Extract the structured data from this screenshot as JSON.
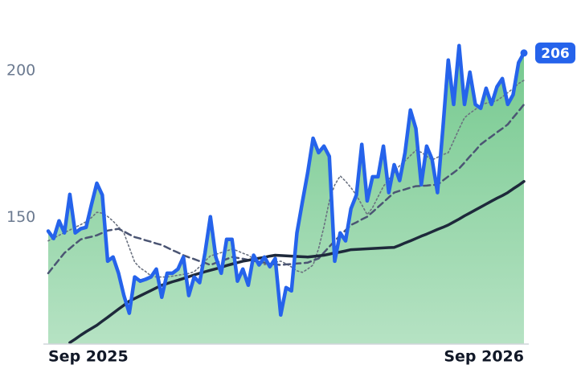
{
  "chart_data": {
    "type": "line",
    "categories": [
      "Sep 2025",
      null,
      null,
      null,
      null,
      null,
      null,
      null,
      null,
      null,
      null,
      null,
      null,
      null,
      null,
      null,
      null,
      null,
      null,
      null,
      null,
      null,
      null,
      null,
      null,
      null,
      null,
      null,
      null,
      null,
      null,
      null,
      null,
      null,
      null,
      null,
      null,
      null,
      null,
      null,
      null,
      null,
      null,
      null,
      null,
      null,
      null,
      null,
      null,
      null,
      null,
      null,
      null,
      null,
      null,
      null,
      null,
      null,
      null,
      null,
      null,
      null,
      null,
      null,
      null,
      null,
      null,
      null,
      null,
      null,
      null,
      null,
      null,
      null,
      null,
      null,
      null,
      null,
      null,
      null,
      null,
      null,
      null,
      null,
      null,
      null,
      null,
      null,
      "Sep 2026"
    ],
    "ylim": [
      107,
      218
    ],
    "yticks": [
      150,
      200
    ],
    "area_fill": "#5cbf7a",
    "series": [
      {
        "color": "#2563eb",
        "style": "solid",
        "values": [
          145.4,
          142.9,
          148.9,
          144.8,
          157.9,
          144.8,
          146.2,
          146.7,
          154.4,
          161.7,
          157.7,
          135.2,
          136.6,
          131.1,
          123.5,
          117.5,
          129.8,
          128.4,
          129.0,
          129.8,
          132.5,
          122.9,
          131.1,
          131.1,
          132.5,
          136.6,
          123.5,
          129.8,
          127.9,
          138.0,
          150.3,
          136.6,
          131.1,
          142.6,
          142.6,
          128.4,
          132.5,
          127.0,
          137.2,
          133.9,
          136.6,
          133.3,
          136.1,
          116.9,
          126.2,
          125.1,
          144.8,
          155.2,
          165.3,
          177.0,
          172.1,
          174.3,
          170.8,
          135.2,
          144.8,
          142.1,
          153.0,
          157.7,
          174.9,
          155.7,
          163.9,
          163.9,
          174.3,
          158.5,
          168.0,
          162.6,
          172.1,
          186.6,
          180.3,
          161.2,
          174.3,
          169.9,
          158.5,
          180.3,
          203.6,
          188.5,
          208.5,
          188.5,
          199.5,
          188.5,
          187.2,
          194.0,
          188.5,
          194.5,
          197.3,
          188.5,
          191.8,
          202.7,
          206
        ]
      },
      {
        "color": "#6b7280",
        "style": "dotted",
        "values": [
          142.1,
          143,
          144,
          144.9,
          145.8,
          146.7,
          147.6,
          148.6,
          150,
          151.8,
          151.5,
          150.4,
          148.8,
          146.8,
          144.8,
          139.8,
          134.9,
          132.9,
          131.7,
          130.2,
          129.8,
          129.8,
          129.8,
          130.1,
          130.4,
          130.7,
          131,
          131.6,
          133.3,
          135.2,
          137,
          137.5,
          138.1,
          138.7,
          139.3,
          138.7,
          137.9,
          137.2,
          136,
          135.1,
          134,
          134.3,
          134.8,
          135.2,
          134.3,
          133.2,
          131.9,
          131.4,
          132.5,
          133.9,
          139.4,
          146.9,
          155.7,
          161.1,
          164.2,
          162.4,
          160.2,
          157.6,
          154.4,
          151,
          153.4,
          157.1,
          160.6,
          163.1,
          165.3,
          167.7,
          169.3,
          171.1,
          172.9,
          172.2,
          170.9,
          169.6,
          170.5,
          171.4,
          172.1,
          176.1,
          180.2,
          184,
          185.5,
          186.8,
          188.4,
          188.9,
          189.3,
          189.8,
          191.1,
          192.5,
          193.9,
          195.6,
          196.7
        ]
      },
      {
        "color": "#4b5573",
        "style": "dashed",
        "values": [
          131.1,
          133.4,
          135.7,
          138,
          139.5,
          141.1,
          142.6,
          143.1,
          143.5,
          144,
          144.8,
          145.6,
          145.9,
          146.2,
          145.3,
          144.3,
          143.4,
          142.9,
          142.3,
          141.8,
          141.2,
          140.7,
          139.8,
          138.9,
          138.1,
          137.2,
          136.5,
          135.9,
          135.2,
          134.6,
          133.9,
          134.6,
          135.2,
          135.9,
          136.6,
          136.3,
          136,
          135.6,
          135.3,
          135,
          134.7,
          134.3,
          134.1,
          133.9,
          134.1,
          134.2,
          134.4,
          134.5,
          134.7,
          135.4,
          136.1,
          138.1,
          140.1,
          142.1,
          143.9,
          145.7,
          147.5,
          148.4,
          149.4,
          150.3,
          151.9,
          153.6,
          155.2,
          156.9,
          158.5,
          159.1,
          159.6,
          160.2,
          160.7,
          160.8,
          160.9,
          161.1,
          161.2,
          162.6,
          164,
          165.3,
          166.7,
          168.7,
          170.8,
          172.8,
          174.9,
          176.3,
          177.6,
          179,
          180.3,
          181.7,
          184,
          186.2,
          188.5
        ]
      },
      {
        "color": "#1e293b",
        "style": "solid",
        "values": [
          null,
          null,
          null,
          null,
          107.5,
          108.7,
          110,
          111.2,
          112.3,
          113.4,
          114.8,
          116.1,
          117.5,
          118.9,
          120.2,
          121.6,
          122.5,
          123.4,
          124.3,
          125.2,
          126.1,
          127,
          127.6,
          128.2,
          128.7,
          129.3,
          129.9,
          130.5,
          131.1,
          131.6,
          132.1,
          132.6,
          133.1,
          133.7,
          134.2,
          134.7,
          135.2,
          135.5,
          135.9,
          136.2,
          136.5,
          136.9,
          137.2,
          137.1,
          137,
          136.9,
          136.8,
          136.7,
          136.6,
          136.8,
          137,
          137.2,
          137.6,
          138,
          138.3,
          138.7,
          139.1,
          139.2,
          139.3,
          139.4,
          139.5,
          139.6,
          139.7,
          139.8,
          139.9,
          140.6,
          141.4,
          142.1,
          142.9,
          143.7,
          144.4,
          145.2,
          146,
          146.7,
          147.5,
          148.5,
          149.5,
          150.6,
          151.6,
          152.6,
          153.6,
          154.6,
          155.6,
          156.6,
          157.5,
          158.5,
          159.8,
          161,
          162.3
        ]
      }
    ]
  }
}
